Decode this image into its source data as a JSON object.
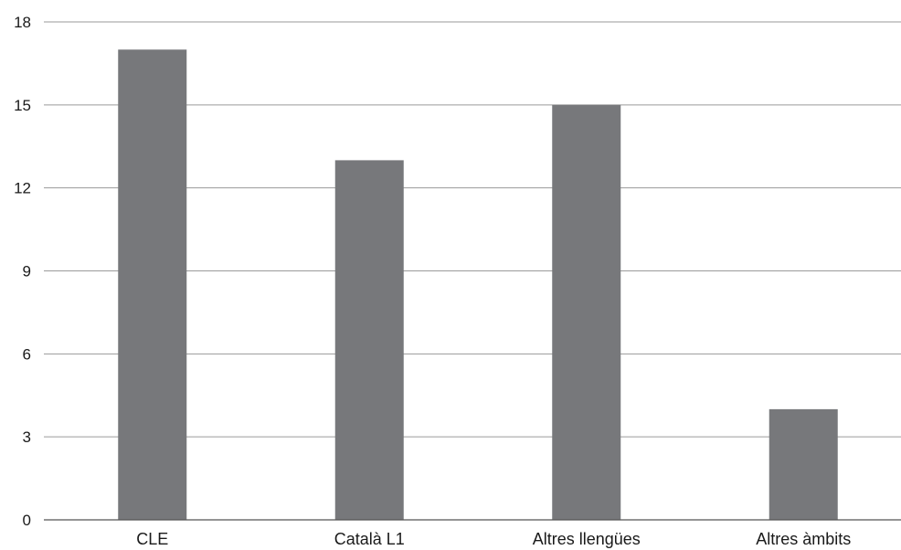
{
  "chart_data": {
    "type": "bar",
    "categories": [
      "CLE",
      "Català L1",
      "Altres llengües",
      "Altres àmbits"
    ],
    "values": [
      17,
      13,
      15,
      4
    ],
    "yticks": [
      0,
      3,
      6,
      9,
      12,
      15,
      18
    ],
    "ylim": [
      0,
      18
    ],
    "grid": true,
    "bar_color": "#77787b",
    "grid_color": "#9a9a9a"
  }
}
